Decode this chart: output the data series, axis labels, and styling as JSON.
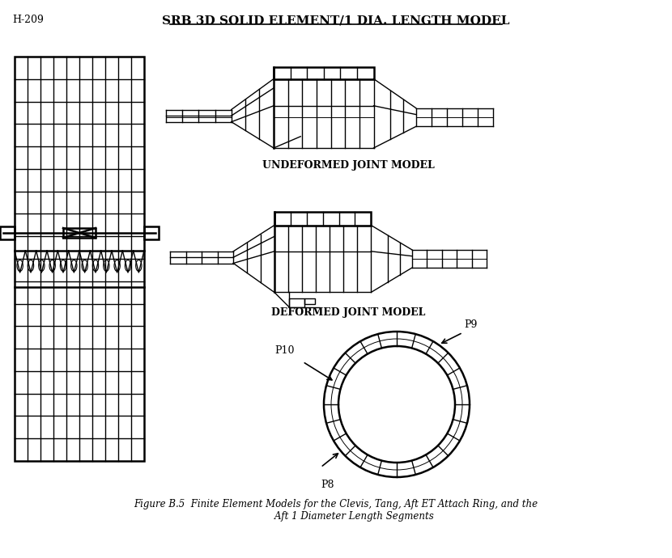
{
  "title": "SRB 3D SOLID ELEMENT/1 DIA. LENGTH MODEL",
  "title_underline": true,
  "ref_label": "H-209",
  "caption": "Figure B.5  Finite Element Models for the Clevis, Tang, Aft ET Attach Ring, and the\n            Aft 1 Diameter Length Segments",
  "label_undeformed": "UNDEFORMED JOINT MODEL",
  "label_deformed": "DEFORMED JOINT MODEL",
  "bg_color": "#ffffff",
  "line_color": "#000000",
  "lw": 1.0,
  "lw_thick": 1.8,
  "p8_label": "P8",
  "p9_label": "P9",
  "p10_label": "P10"
}
